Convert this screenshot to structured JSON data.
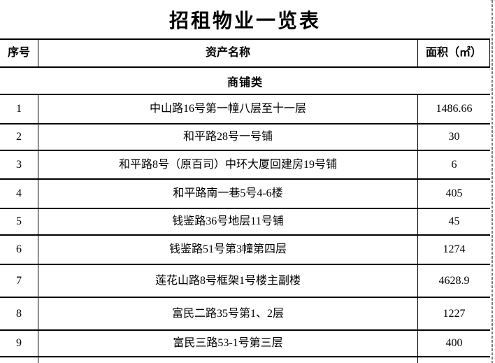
{
  "title": "招租物业一览表",
  "columns": [
    "序号",
    "资产名称",
    "面积（㎡）"
  ],
  "category": "商铺类",
  "rows": [
    {
      "no": "1",
      "name": "中山路16号第一幢八层至十一层",
      "area": "1486.66"
    },
    {
      "no": "2",
      "name": "和平路28号一号铺",
      "area": "30"
    },
    {
      "no": "3",
      "name": "和平路8号（原百司）中环大厦回建房19号铺",
      "area": "6"
    },
    {
      "no": "4",
      "name": "和平路南一巷5号4-6楼",
      "area": "405"
    },
    {
      "no": "5",
      "name": "钱鉴路36号地层11号铺",
      "area": "45"
    },
    {
      "no": "6",
      "name": "钱鉴路51号第3幢第四层",
      "area": "1274"
    },
    {
      "no": "7",
      "name": "莲花山路8号框架1号楼主副楼",
      "area": "4628.9"
    },
    {
      "no": "8",
      "name": "富民二路35号第1、2层",
      "area": "1227"
    },
    {
      "no": "9",
      "name": "富民三路53-1号第三层",
      "area": "400"
    }
  ]
}
